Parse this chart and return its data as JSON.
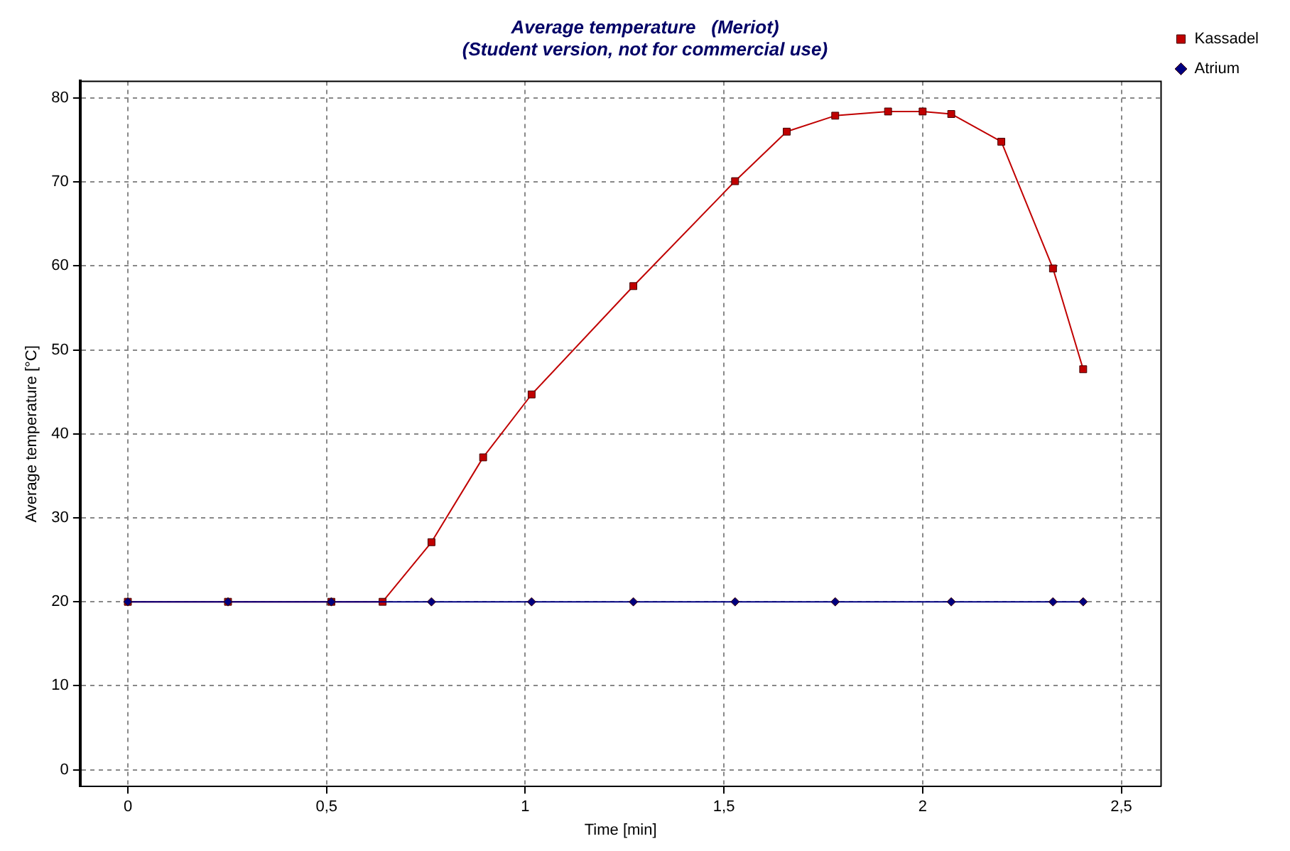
{
  "chart_data": {
    "type": "line",
    "title": [
      "Average temperature   (Meriot)",
      "(Student version, not for commercial use)"
    ],
    "xlabel": "Time [min]",
    "ylabel": "Average temperature [°C]",
    "series": [
      {
        "name": "Kassadel",
        "color": "#c00000",
        "marker": "square",
        "x": [
          0,
          0.252,
          0.512,
          0.641,
          0.764,
          0.894,
          1.016,
          1.272,
          1.528,
          1.658,
          1.78,
          1.913,
          2.0,
          2.072,
          2.198,
          2.328,
          2.404
        ],
        "values": [
          20,
          20,
          20,
          20,
          27.1,
          37.2,
          44.7,
          57.6,
          70.1,
          76.0,
          77.9,
          78.4,
          78.4,
          78.1,
          74.8,
          59.7,
          47.7
        ]
      },
      {
        "name": "Atrium",
        "color": "#000080",
        "marker": "diamond",
        "x": [
          0,
          0.252,
          0.512,
          0.764,
          1.016,
          1.272,
          1.528,
          1.78,
          2.072,
          2.328,
          2.404
        ],
        "values": [
          20,
          20,
          20,
          20,
          20,
          20,
          20,
          20,
          20,
          20,
          20
        ]
      }
    ],
    "xlim": [
      -0.12,
      2.6
    ],
    "ylim": [
      -2,
      82
    ],
    "xticks": [
      0,
      {
        "value": 0.5,
        "label": "0,5"
      },
      1,
      {
        "value": 1.5,
        "label": "1,5"
      },
      2,
      {
        "value": 2.5,
        "label": "2,5"
      }
    ],
    "yticks": [
      0,
      10,
      20,
      30,
      40,
      50,
      60,
      70,
      80
    ],
    "grid": true,
    "legend": "top right",
    "line_style": "solid"
  }
}
